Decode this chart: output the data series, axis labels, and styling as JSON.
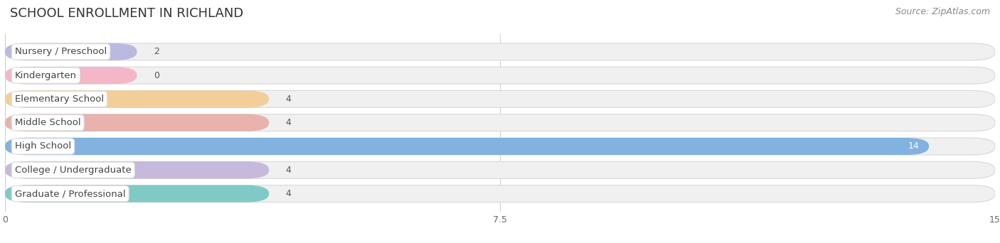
{
  "title": "SCHOOL ENROLLMENT IN RICHLAND",
  "source": "Source: ZipAtlas.com",
  "categories": [
    "Nursery / Preschool",
    "Kindergarten",
    "Elementary School",
    "Middle School",
    "High School",
    "College / Undergraduate",
    "Graduate / Professional"
  ],
  "values": [
    2,
    0,
    4,
    4,
    14,
    4,
    4
  ],
  "bar_colors": [
    "#b0b0e0",
    "#f4adc0",
    "#f5c98a",
    "#e8a8a0",
    "#6fa8dc",
    "#c0b0d8",
    "#6dc4be"
  ],
  "bar_bg_color": "#eaeaea",
  "xlim": [
    0,
    15
  ],
  "xticks": [
    0,
    7.5,
    15
  ],
  "title_fontsize": 13,
  "source_fontsize": 9,
  "label_fontsize": 9.5,
  "value_fontsize": 9,
  "background_color": "#ffffff",
  "bar_height": 0.72,
  "label_color": "#444444",
  "value_inside_color": "#ffffff",
  "value_outside_color": "#555555",
  "bar_bg_light": "#f0f0f0",
  "bar_edge_color": "#d8d8d8"
}
